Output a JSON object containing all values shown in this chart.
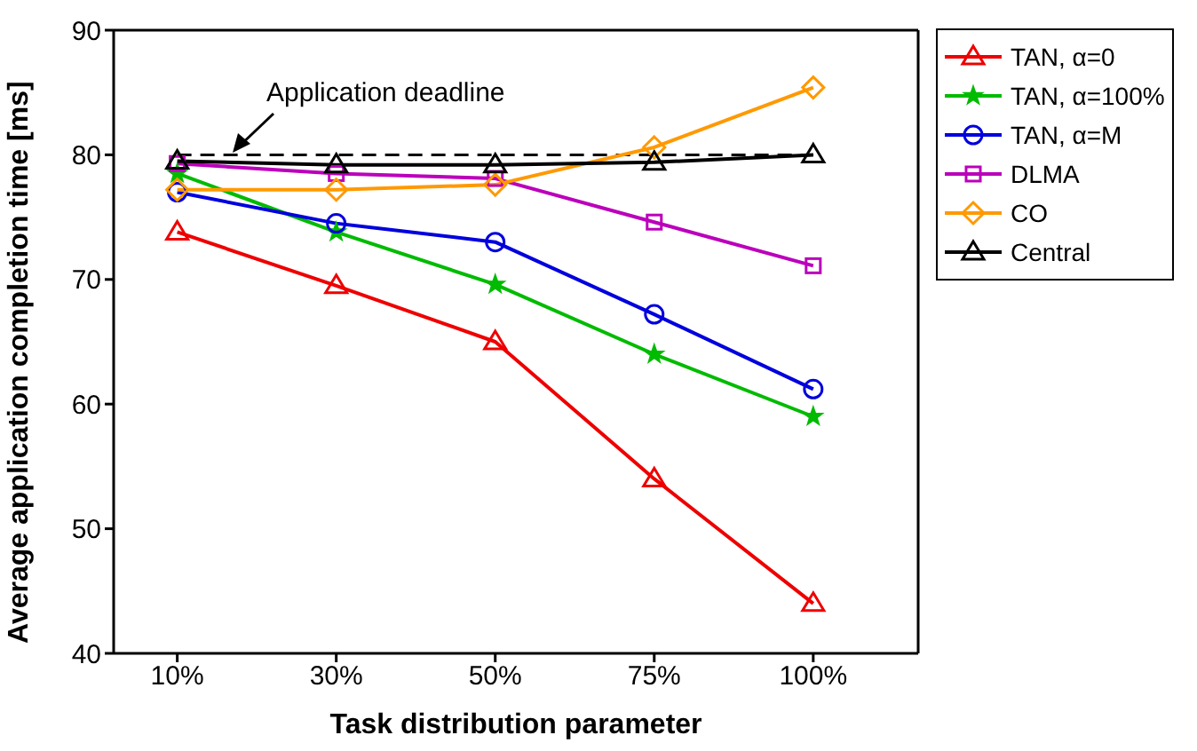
{
  "chart_data": {
    "type": "line",
    "xlabel": "Task distribution parameter",
    "ylabel": "Average application completion time [ms]",
    "categories": [
      "10%",
      "30%",
      "50%",
      "75%",
      "100%"
    ],
    "ylim": [
      40,
      90
    ],
    "yticks": [
      40,
      50,
      60,
      70,
      80,
      90
    ],
    "grid": false,
    "legend": "right",
    "ref_lines": [
      {
        "axis": "y",
        "value": 80,
        "line_style": "dashed",
        "color": "#000000"
      }
    ],
    "annotations": [
      "Application deadline"
    ],
    "series": [
      {
        "name": "TAN, α=0",
        "color": "#ee0000",
        "marker": "triangle",
        "values": [
          73.8,
          69.5,
          65.0,
          54.0,
          44.0
        ]
      },
      {
        "name": "TAN, α=100%",
        "color": "#00bb00",
        "marker": "star",
        "values": [
          78.5,
          73.8,
          69.6,
          64.0,
          59.0
        ]
      },
      {
        "name": "TAN, α=M",
        "color": "#0000dd",
        "marker": "circle",
        "values": [
          77.0,
          74.5,
          73.0,
          67.2,
          61.2
        ]
      },
      {
        "name": "DLMA",
        "color": "#bb00bb",
        "marker": "square",
        "values": [
          79.3,
          78.5,
          78.1,
          74.6,
          71.1
        ]
      },
      {
        "name": "CO",
        "color": "#ff9900",
        "marker": "diamond",
        "values": [
          77.2,
          77.2,
          77.6,
          80.6,
          85.4
        ]
      },
      {
        "name": "Central",
        "color": "#000000",
        "marker": "triangle",
        "values": [
          79.5,
          79.2,
          79.2,
          79.4,
          80.0
        ]
      }
    ]
  }
}
